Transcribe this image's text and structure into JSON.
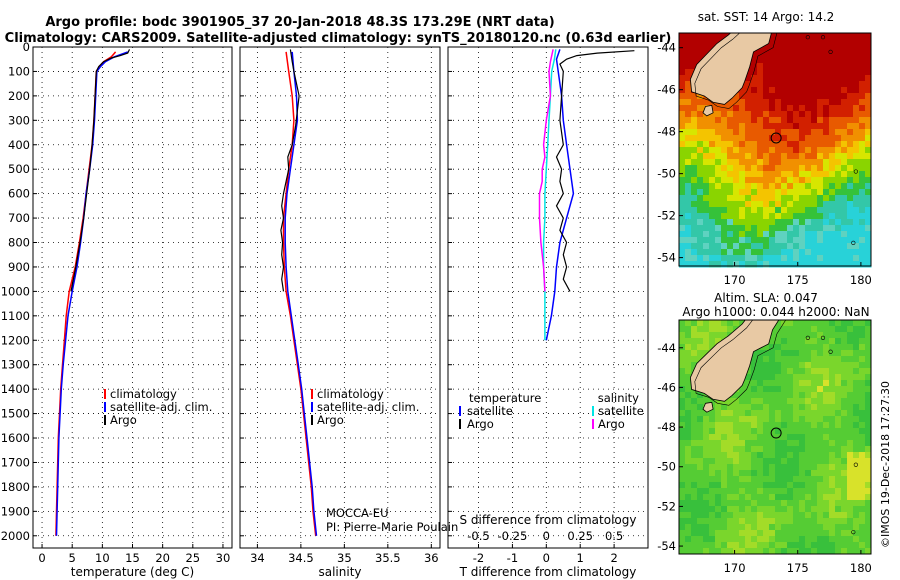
{
  "title_line1": "Argo profile: bodc 3901905_37 20-Jan-2018 48.3S 173.29E (NRT data)",
  "title_line2": "Climatology: CARS2009. Satellite-adjusted climatology: synTS_20180120.nc (0.63d earlier)",
  "credit": "MOCCA-EU",
  "pi": "PI: Pierre-Marie Poulain",
  "timestamp": "©IMOS 19-Dec-2018 17:27:30",
  "colors": {
    "climatology": "#ff0000",
    "satellite": "#0000ff",
    "argo": "#000000",
    "argo_salinity_diff": "#ff00ff",
    "satellite_salinity_diff": "#00e5e5"
  },
  "depth_axis": {
    "ticks": [
      0,
      100,
      200,
      300,
      400,
      500,
      600,
      700,
      800,
      900,
      1000,
      1100,
      1200,
      1300,
      1400,
      1500,
      1600,
      1700,
      1800,
      1900,
      2000
    ],
    "range": [
      0,
      2050
    ]
  },
  "chart_data": [
    {
      "type": "line",
      "xlabel": "temperature (deg C)",
      "xticks": [
        0,
        5,
        10,
        15,
        20,
        25,
        30
      ],
      "xlim": [
        -1.5,
        31.5
      ],
      "legend": [
        {
          "label": "climatology",
          "color": "#ff0000"
        },
        {
          "label": "satellite-adj. clim.",
          "color": "#0000ff"
        },
        {
          "label": "Argo",
          "color": "#000000"
        }
      ],
      "series": [
        {
          "key": "climatology",
          "color": "#ff0000",
          "width": 1.5,
          "points": [
            [
              12.2,
              20
            ],
            [
              11.5,
              40
            ],
            [
              10.2,
              60
            ],
            [
              9.5,
              80
            ],
            [
              9.0,
              100
            ],
            [
              8.8,
              200
            ],
            [
              8.6,
              300
            ],
            [
              8.3,
              400
            ],
            [
              7.8,
              500
            ],
            [
              7.3,
              600
            ],
            [
              6.8,
              700
            ],
            [
              6.2,
              800
            ],
            [
              5.5,
              900
            ],
            [
              4.5,
              1000
            ],
            [
              4.0,
              1100
            ],
            [
              3.7,
              1200
            ],
            [
              3.4,
              1300
            ],
            [
              3.1,
              1400
            ],
            [
              2.9,
              1500
            ],
            [
              2.7,
              1600
            ],
            [
              2.6,
              1700
            ],
            [
              2.5,
              1800
            ],
            [
              2.4,
              1900
            ],
            [
              2.3,
              2000
            ]
          ]
        },
        {
          "key": "satellite",
          "color": "#0000ff",
          "width": 1.5,
          "points": [
            [
              14.2,
              20
            ],
            [
              12.0,
              40
            ],
            [
              10.5,
              60
            ],
            [
              9.7,
              80
            ],
            [
              9.1,
              100
            ],
            [
              8.9,
              200
            ],
            [
              8.7,
              300
            ],
            [
              8.4,
              400
            ],
            [
              7.9,
              500
            ],
            [
              7.3,
              600
            ],
            [
              6.9,
              700
            ],
            [
              6.4,
              800
            ],
            [
              5.8,
              900
            ],
            [
              5.0,
              1000
            ],
            [
              4.3,
              1100
            ],
            [
              3.9,
              1200
            ],
            [
              3.5,
              1300
            ],
            [
              3.2,
              1400
            ],
            [
              3.0,
              1500
            ],
            [
              2.8,
              1600
            ],
            [
              2.7,
              1700
            ],
            [
              2.6,
              1800
            ],
            [
              2.5,
              1900
            ],
            [
              2.4,
              2000
            ]
          ]
        },
        {
          "key": "argo",
          "color": "#000000",
          "width": 1.2,
          "points": [
            [
              14.5,
              10
            ],
            [
              14.2,
              25
            ],
            [
              13.0,
              35
            ],
            [
              11.5,
              45
            ],
            [
              10.2,
              60
            ],
            [
              9.4,
              80
            ],
            [
              9.0,
              100
            ],
            [
              8.8,
              200
            ],
            [
              8.6,
              300
            ],
            [
              8.3,
              400
            ],
            [
              7.9,
              500
            ],
            [
              7.4,
              600
            ],
            [
              6.9,
              700
            ],
            [
              6.3,
              800
            ],
            [
              5.6,
              900
            ],
            [
              4.8,
              1000
            ]
          ]
        }
      ]
    },
    {
      "type": "line",
      "xlabel": "salinity",
      "xticks": [
        34,
        34.5,
        35,
        35.5,
        36
      ],
      "xlim": [
        33.8,
        36.1
      ],
      "legend": [
        {
          "label": "climatology",
          "color": "#ff0000"
        },
        {
          "label": "satellite-adj. clim.",
          "color": "#0000ff"
        },
        {
          "label": "Argo",
          "color": "#000000"
        }
      ],
      "series": [
        {
          "key": "climatology",
          "color": "#ff0000",
          "width": 1.5,
          "points": [
            [
              34.33,
              20
            ],
            [
              34.36,
              100
            ],
            [
              34.4,
              200
            ],
            [
              34.42,
              300
            ],
            [
              34.4,
              400
            ],
            [
              34.36,
              500
            ],
            [
              34.33,
              600
            ],
            [
              34.3,
              700
            ],
            [
              34.3,
              800
            ],
            [
              34.31,
              900
            ],
            [
              34.33,
              1000
            ],
            [
              34.38,
              1100
            ],
            [
              34.42,
              1200
            ],
            [
              34.46,
              1300
            ],
            [
              34.5,
              1400
            ],
            [
              34.53,
              1500
            ],
            [
              34.56,
              1600
            ],
            [
              34.59,
              1700
            ],
            [
              34.62,
              1800
            ],
            [
              34.64,
              1900
            ],
            [
              34.67,
              2000
            ]
          ]
        },
        {
          "key": "satellite",
          "color": "#0000ff",
          "width": 1.5,
          "points": [
            [
              34.4,
              20
            ],
            [
              34.42,
              100
            ],
            [
              34.45,
              200
            ],
            [
              34.46,
              300
            ],
            [
              34.42,
              400
            ],
            [
              34.38,
              500
            ],
            [
              34.34,
              600
            ],
            [
              34.32,
              700
            ],
            [
              34.32,
              800
            ],
            [
              34.33,
              900
            ],
            [
              34.35,
              1000
            ],
            [
              34.39,
              1100
            ],
            [
              34.43,
              1200
            ],
            [
              34.47,
              1300
            ],
            [
              34.51,
              1400
            ],
            [
              34.54,
              1500
            ],
            [
              34.57,
              1600
            ],
            [
              34.6,
              1700
            ],
            [
              34.63,
              1800
            ],
            [
              34.65,
              1900
            ],
            [
              34.68,
              2000
            ]
          ]
        },
        {
          "key": "argo",
          "color": "#000000",
          "width": 1.2,
          "points": [
            [
              34.38,
              10
            ],
            [
              34.4,
              60
            ],
            [
              34.42,
              100
            ],
            [
              34.48,
              200
            ],
            [
              34.46,
              260
            ],
            [
              34.44,
              320
            ],
            [
              34.4,
              400
            ],
            [
              34.35,
              450
            ],
            [
              34.36,
              500
            ],
            [
              34.33,
              550
            ],
            [
              34.3,
              600
            ],
            [
              34.28,
              650
            ],
            [
              34.3,
              700
            ],
            [
              34.27,
              750
            ],
            [
              34.29,
              800
            ],
            [
              34.28,
              850
            ],
            [
              34.3,
              900
            ],
            [
              34.28,
              950
            ],
            [
              34.3,
              1000
            ]
          ]
        }
      ]
    },
    {
      "type": "line",
      "xlabel": "T difference from climatology",
      "toplabel": "S difference from climatology",
      "xticks": [
        -2,
        -1,
        0,
        1,
        2
      ],
      "xlim": [
        -2.9,
        3.0
      ],
      "top_ticks": [
        -0.5,
        -0.25,
        0,
        0.25,
        0.5
      ],
      "top_tick_labels": [
        "-0.5",
        "-0.25",
        "0",
        "0.25",
        "0.5"
      ],
      "top_xlim": [
        -0.725,
        0.75
      ],
      "legend_temp_header": "temperature",
      "legend_sal_header": "salinity",
      "legend_temp": [
        {
          "label": "satellite",
          "color": "#0000ff"
        },
        {
          "label": "Argo",
          "color": "#000000"
        }
      ],
      "legend_sal": [
        {
          "label": "satellite",
          "color": "#00e5e5"
        },
        {
          "label": "Argo",
          "color": "#ff00ff"
        }
      ],
      "series": [
        {
          "key": "temp_satellite",
          "axis": "T",
          "color": "#0000ff",
          "width": 1.5,
          "points": [
            [
              0.4,
              10
            ],
            [
              0.3,
              50
            ],
            [
              0.35,
              100
            ],
            [
              0.45,
              200
            ],
            [
              0.5,
              300
            ],
            [
              0.6,
              400
            ],
            [
              0.7,
              500
            ],
            [
              0.8,
              600
            ],
            [
              0.6,
              700
            ],
            [
              0.4,
              800
            ],
            [
              0.3,
              900
            ],
            [
              0.25,
              1000
            ],
            [
              0.15,
              1100
            ],
            [
              0.0,
              1200
            ]
          ]
        },
        {
          "key": "temp_argo",
          "axis": "T",
          "color": "#000000",
          "width": 1.2,
          "points": [
            [
              2.6,
              15
            ],
            [
              1.5,
              25
            ],
            [
              0.9,
              35
            ],
            [
              0.6,
              50
            ],
            [
              0.4,
              70
            ],
            [
              0.5,
              100
            ],
            [
              0.45,
              200
            ],
            [
              0.4,
              300
            ],
            [
              0.5,
              400
            ],
            [
              0.3,
              450
            ],
            [
              0.45,
              500
            ],
            [
              0.4,
              550
            ],
            [
              0.5,
              600
            ],
            [
              0.3,
              650
            ],
            [
              0.5,
              700
            ],
            [
              0.4,
              750
            ],
            [
              0.6,
              800
            ],
            [
              0.5,
              850
            ],
            [
              0.6,
              900
            ],
            [
              0.5,
              950
            ],
            [
              0.7,
              1000
            ]
          ]
        },
        {
          "key": "sal_satellite",
          "axis": "S",
          "color": "#00e5e5",
          "width": 1.5,
          "points": [
            [
              0.07,
              10
            ],
            [
              0.06,
              50
            ],
            [
              0.04,
              100
            ],
            [
              0.03,
              200
            ],
            [
              0.02,
              300
            ],
            [
              0.01,
              400
            ],
            [
              0.0,
              500
            ],
            [
              -0.01,
              600
            ],
            [
              -0.01,
              700
            ],
            [
              -0.02,
              800
            ],
            [
              -0.02,
              900
            ],
            [
              -0.01,
              1000
            ],
            [
              -0.01,
              1100
            ],
            [
              -0.01,
              1200
            ]
          ]
        },
        {
          "key": "sal_argo",
          "axis": "S",
          "color": "#ff00ff",
          "width": 1.5,
          "points": [
            [
              0.05,
              10
            ],
            [
              0.03,
              60
            ],
            [
              0.02,
              100
            ],
            [
              0.03,
              200
            ],
            [
              0.0,
              300
            ],
            [
              -0.02,
              400
            ],
            [
              -0.01,
              450
            ],
            [
              -0.03,
              500
            ],
            [
              -0.03,
              550
            ],
            [
              -0.05,
              600
            ],
            [
              -0.05,
              700
            ],
            [
              -0.04,
              800
            ],
            [
              -0.02,
              900
            ],
            [
              -0.01,
              1000
            ]
          ]
        }
      ]
    }
  ],
  "maps": [
    {
      "title": "sat. SST: 14 Argo: 14.2",
      "subtitle": "",
      "yticks": [
        -44,
        -46,
        -48,
        -50,
        -52,
        -54
      ],
      "ylim": [
        -43.3,
        -54.4
      ],
      "xticks": [
        170,
        175,
        180
      ],
      "xlim": [
        165.6,
        180.8
      ],
      "kind": "sst",
      "marker_lon": 173.29,
      "marker_lat": -48.3
    },
    {
      "title": "Altim. SLA: 0.047",
      "subtitle": "Argo h1000: 0.044 h2000: NaN",
      "yticks": [
        -44,
        -46,
        -48,
        -50,
        -52,
        -54
      ],
      "ylim": [
        -42.6,
        -54.4
      ],
      "xticks": [
        170,
        175,
        180
      ],
      "xlim": [
        165.6,
        180.8
      ],
      "kind": "sla",
      "marker_lon": 173.29,
      "marker_lat": -48.3
    }
  ]
}
